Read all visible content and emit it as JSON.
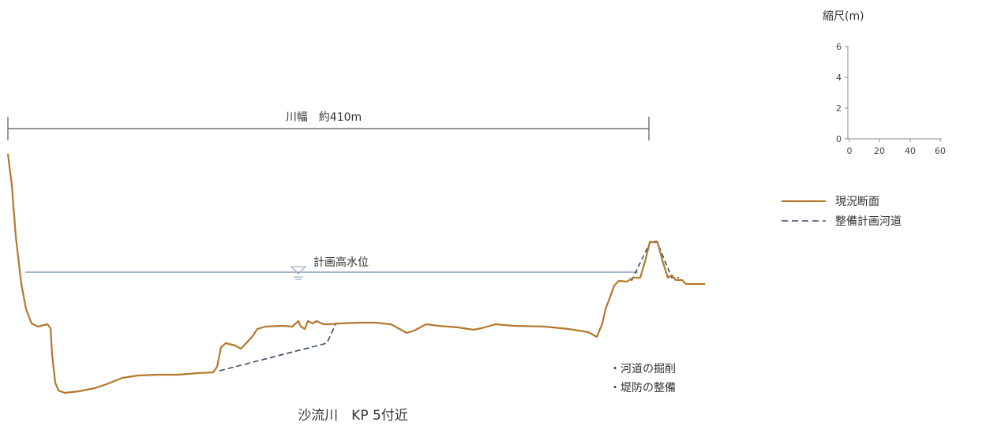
{
  "colors": {
    "current_section": "#b5772c",
    "planned_channel": "#3b4a6b",
    "water_level": "#6f8cb0",
    "text": "#333333",
    "axes": "#888888"
  },
  "river_width": {
    "label": "川幅　約410m"
  },
  "water_level": {
    "label": "計画高水位",
    "symbol": "water-level-triangle-icon"
  },
  "scale": {
    "title": "縮尺(m)",
    "y_ticks": [
      "6",
      "4",
      "2",
      "0"
    ],
    "x_ticks": [
      "0",
      "20",
      "40",
      "60"
    ]
  },
  "legend": {
    "items": [
      {
        "label": "現況断面",
        "style": "solid"
      },
      {
        "label": "整備計画河道",
        "style": "dashed"
      }
    ]
  },
  "notes": [
    "・河道の掘削",
    "・堤防の整備"
  ],
  "caption": "沙流川　KP 5付近"
}
